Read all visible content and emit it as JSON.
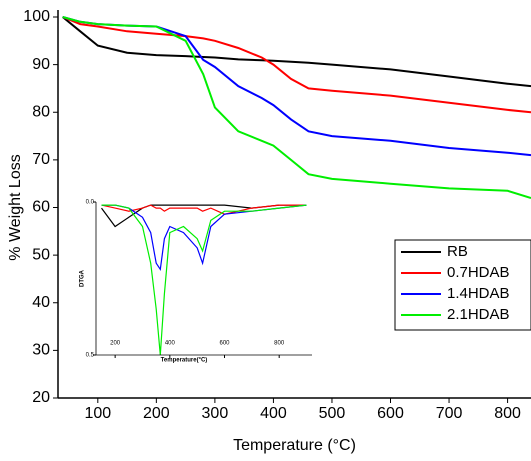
{
  "chart_data": [
    {
      "type": "line",
      "xlabel": "Temperature (°C)",
      "ylabel": "% Weight Loss",
      "x": [
        40,
        70,
        100,
        150,
        200,
        250,
        280,
        300,
        340,
        380,
        400,
        430,
        460,
        500,
        600,
        700,
        800,
        840
      ],
      "series": [
        {
          "name": "RB",
          "color": "#000000",
          "values": [
            100,
            97,
            94,
            92.5,
            92,
            91.8,
            91.6,
            91.5,
            91.1,
            90.9,
            90.8,
            90.6,
            90.4,
            90,
            89,
            87.5,
            86,
            85.5
          ]
        },
        {
          "name": "0.7HDAB",
          "color": "#ff0000",
          "values": [
            100,
            98.5,
            98,
            97,
            96.5,
            96,
            95.5,
            95,
            93.5,
            91.5,
            90,
            87,
            85,
            84.5,
            83.5,
            82,
            80.5,
            80
          ]
        },
        {
          "name": "1.4HDAB",
          "color": "#0000ff",
          "values": [
            100,
            99,
            98.5,
            98.2,
            98,
            96,
            91,
            89.5,
            85.5,
            83,
            81.5,
            78.5,
            76,
            75,
            74,
            72.5,
            71.5,
            71
          ]
        },
        {
          "name": "2.1HDAB",
          "color": "#00ee00",
          "values": [
            100,
            99,
            98.5,
            98.2,
            98,
            95,
            88,
            81,
            76,
            74,
            73,
            70,
            67,
            66,
            65,
            64,
            63.5,
            62
          ]
        }
      ],
      "xlim": [
        32,
        840
      ],
      "ylim": [
        20,
        100
      ],
      "xticks": [
        100,
        200,
        300,
        400,
        500,
        600,
        700,
        800
      ],
      "yticks": [
        20,
        30,
        40,
        50,
        60,
        70,
        80,
        90,
        100
      ]
    },
    {
      "type": "line",
      "xlabel": "Temperature(°C)",
      "ylabel": "DTGA",
      "inverted": true,
      "x": [
        150,
        200,
        250,
        300,
        330,
        350,
        365,
        380,
        400,
        450,
        500,
        520,
        550,
        600,
        700,
        800,
        900
      ],
      "series": [
        {
          "name": "RB",
          "color": "#000000",
          "values": [
            0.02,
            0.08,
            0.05,
            0.02,
            0.01,
            0.01,
            0.01,
            0.01,
            0.01,
            0.01,
            0.01,
            0.01,
            0.01,
            0.01,
            0.02,
            0.01,
            0.01
          ]
        },
        {
          "name": "0.7HDAB",
          "color": "#ff0000",
          "values": [
            0.01,
            0.02,
            0.03,
            0.02,
            0.01,
            0.02,
            0.02,
            0.03,
            0.02,
            0.02,
            0.02,
            0.03,
            0.02,
            0.04,
            0.02,
            0.01,
            0.01
          ]
        },
        {
          "name": "1.4HDAB",
          "color": "#0000ff",
          "values": [
            0.01,
            0.01,
            0.02,
            0.05,
            0.1,
            0.2,
            0.22,
            0.12,
            0.08,
            0.1,
            0.15,
            0.2,
            0.08,
            0.04,
            0.03,
            0.02,
            0.01
          ]
        },
        {
          "name": "2.1HDAB",
          "color": "#00ee00",
          "values": [
            0.01,
            0.01,
            0.02,
            0.08,
            0.2,
            0.35,
            0.5,
            0.3,
            0.1,
            0.08,
            0.12,
            0.16,
            0.06,
            0.03,
            0.03,
            0.02,
            0.01
          ]
        }
      ],
      "xlim": [
        130,
        920
      ],
      "ylim": [
        0,
        0.5
      ],
      "xticks": [
        200,
        400,
        600,
        800
      ],
      "yticks": [
        {
          "value": 0,
          "label": "0.0"
        },
        0.5
      ]
    }
  ]
}
